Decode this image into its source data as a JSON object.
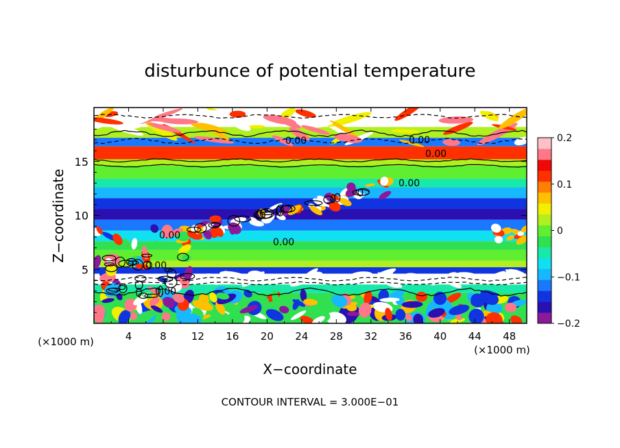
{
  "chart_data": {
    "type": "heatmap",
    "title": "disturbunce of potential temperature",
    "xlabel": "X−coordinate",
    "ylabel": "Z−coordinate",
    "x_unit_left": "(×1000 m)",
    "x_unit_right": "(×1000 m)",
    "xlim": [
      0,
      50
    ],
    "ylim": [
      0,
      20
    ],
    "x_ticks": [
      4,
      8,
      12,
      16,
      20,
      24,
      28,
      32,
      36,
      40,
      44,
      48
    ],
    "y_ticks": [
      5,
      10,
      15
    ],
    "colorbar": {
      "range": [
        -0.2,
        0.2
      ],
      "tick_values": [
        0.2,
        0.1,
        0,
        -0.1,
        -0.2
      ],
      "tick_labels": [
        "0.2",
        "0.1",
        "0",
        "−0.1",
        "−0.2"
      ],
      "colors": [
        "#8b1a9a",
        "#2a10b0",
        "#1035e0",
        "#1a78ff",
        "#18b8ff",
        "#10e0f0",
        "#18e8a8",
        "#30e050",
        "#60ee30",
        "#b0f020",
        "#f0f000",
        "#ffc000",
        "#ff8000",
        "#ff3000",
        "#ee0808",
        "#ff7888",
        "#ffc0c8"
      ]
    },
    "contour_labels": [
      "0.00",
      "0.00",
      "0.00",
      "0.00",
      "0.00",
      "0.00",
      "0.00",
      "0.00"
    ],
    "footer": "CONTOUR INTERVAL =  3.000E−01",
    "bands": [
      {
        "z": [
          18.2,
          20.0
        ],
        "value": 0.2
      },
      {
        "z": [
          17.2,
          18.2
        ],
        "value": 0.02
      },
      {
        "z": [
          16.4,
          17.2
        ],
        "value": -0.12
      },
      {
        "z": [
          15.2,
          16.4
        ],
        "value": 0.12
      },
      {
        "z": [
          14.6,
          15.2
        ],
        "value": 0.02
      },
      {
        "z": [
          13.4,
          14.6
        ],
        "value": 0.0
      },
      {
        "z": [
          12.6,
          13.4
        ],
        "value": -0.04
      },
      {
        "z": [
          11.6,
          12.6
        ],
        "value": -0.09
      },
      {
        "z": [
          10.6,
          11.6
        ],
        "value": -0.13
      },
      {
        "z": [
          9.6,
          10.6
        ],
        "value": -0.16
      },
      {
        "z": [
          8.6,
          9.6
        ],
        "value": -0.12
      },
      {
        "z": [
          7.6,
          8.6
        ],
        "value": -0.07
      },
      {
        "z": [
          6.8,
          7.6
        ],
        "value": -0.03
      },
      {
        "z": [
          5.8,
          6.8
        ],
        "value": 0.01
      },
      {
        "z": [
          5.2,
          5.8
        ],
        "value": 0.03
      },
      {
        "z": [
          4.6,
          5.2
        ],
        "value": -0.15
      },
      {
        "z": [
          3.6,
          4.6
        ],
        "value": 0.2
      },
      {
        "z": [
          2.8,
          3.6
        ],
        "value": -0.05
      },
      {
        "z": [
          0.0,
          2.8
        ],
        "value": -0.02
      }
    ]
  }
}
